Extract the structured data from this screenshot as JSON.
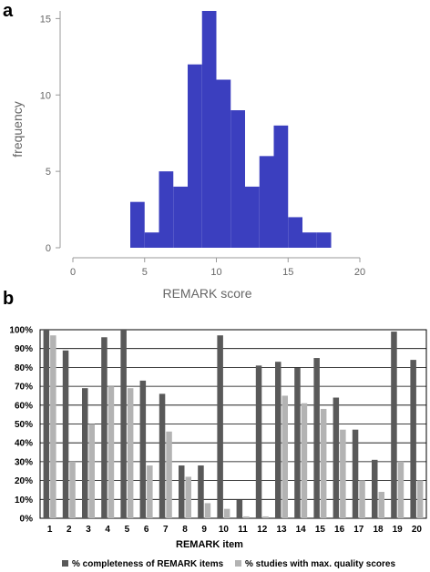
{
  "panels": {
    "a": "a",
    "b": "b"
  },
  "chart_data": [
    {
      "type": "bar",
      "panel": "a",
      "bin_edges": [
        4,
        5,
        6,
        7,
        8,
        9,
        10,
        11,
        12,
        13,
        14,
        15,
        16,
        17,
        18
      ],
      "values": [
        3,
        1,
        5,
        4,
        12,
        15.5,
        11,
        9,
        4,
        6,
        8,
        2,
        1,
        1
      ],
      "xlabel": "REMARK score",
      "ylabel": "frequency",
      "xticks": [
        "0",
        "5",
        "10",
        "15",
        "20"
      ],
      "yticks": [
        "0",
        "5",
        "10",
        "15"
      ],
      "xlim": [
        0,
        20
      ],
      "ylim": [
        0,
        15.5
      ],
      "bar_color": "#3b3fbf",
      "grid": false
    },
    {
      "type": "bar",
      "panel": "b",
      "categories": [
        "1",
        "2",
        "3",
        "4",
        "5",
        "6",
        "7",
        "8",
        "9",
        "10",
        "11",
        "12",
        "13",
        "14",
        "15",
        "16",
        "17",
        "18",
        "19",
        "20"
      ],
      "series": [
        {
          "name": "% completeness of REMARK items",
          "color": "#595959",
          "values": [
            100,
            89,
            69,
            96,
            100,
            73,
            66,
            28,
            28,
            97,
            10,
            81,
            83,
            80,
            85,
            64,
            47,
            31,
            99,
            84
          ]
        },
        {
          "name": "% studies with max. quality scores",
          "color": "#b3b3b3",
          "values": [
            97,
            30,
            50,
            70,
            69,
            28,
            46,
            22,
            8,
            5,
            1,
            1,
            65,
            61,
            58,
            47,
            20,
            14,
            30,
            20
          ]
        }
      ],
      "xlabel": "REMARK item",
      "yticks": [
        "0%",
        "10%",
        "20%",
        "30%",
        "40%",
        "50%",
        "60%",
        "70%",
        "80%",
        "90%",
        "100%"
      ],
      "ylim": [
        0,
        100
      ],
      "grid": true,
      "legend_position": "bottom"
    }
  ]
}
